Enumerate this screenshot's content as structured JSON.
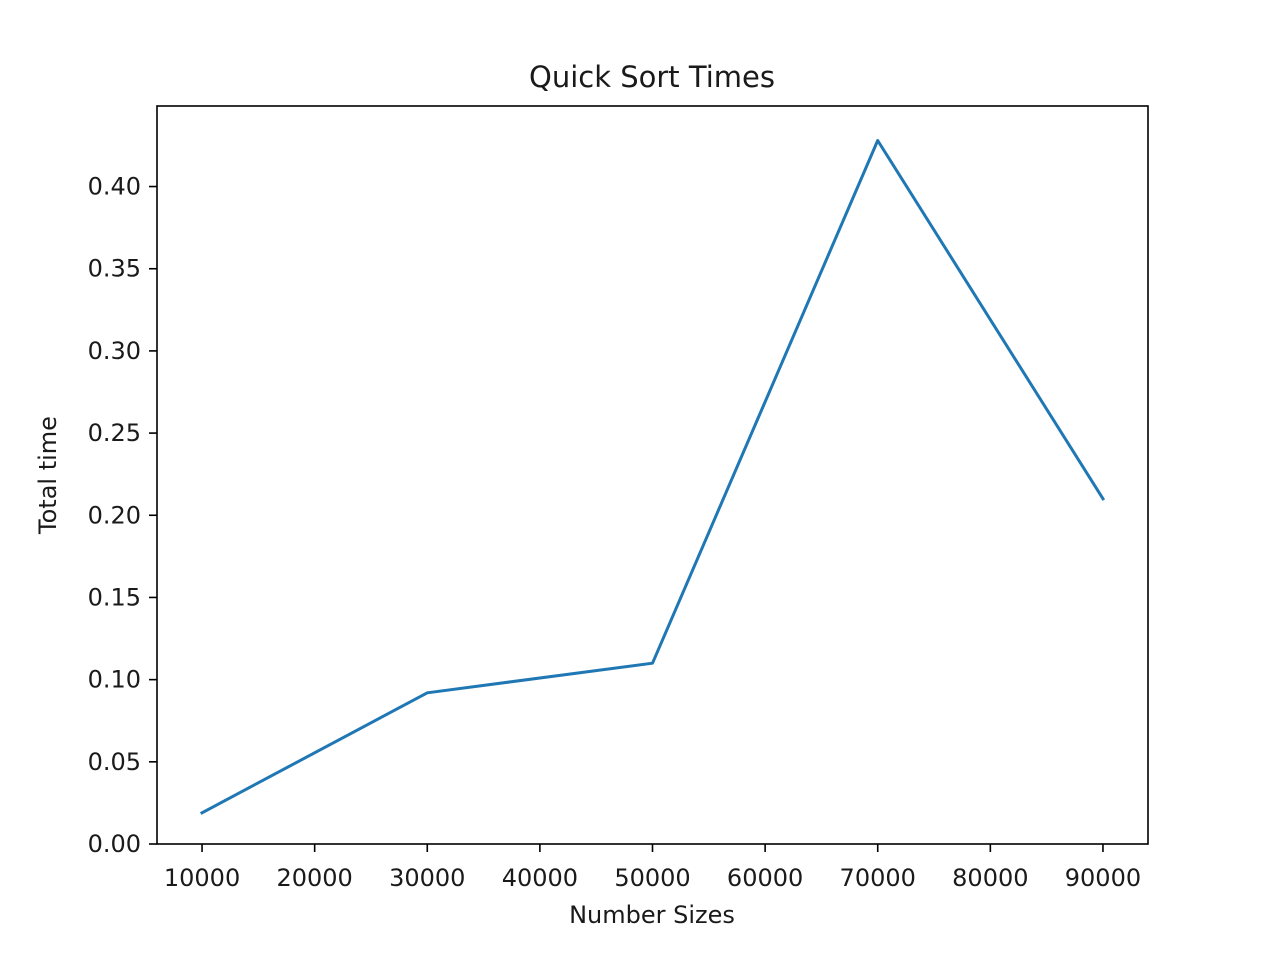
{
  "chart_data": {
    "type": "line",
    "title": "Quick Sort Times",
    "xlabel": "Number Sizes",
    "ylabel": "Total time",
    "x": [
      10000,
      30000,
      50000,
      70000,
      90000
    ],
    "series": [
      {
        "values": [
          0.019,
          0.092,
          0.11,
          0.428,
          0.21
        ],
        "color": "#1f77b4"
      }
    ],
    "xlim": [
      6000,
      94000
    ],
    "ylim": [
      0.0,
      0.449
    ],
    "xticks": [
      10000,
      20000,
      30000,
      40000,
      50000,
      60000,
      70000,
      80000,
      90000
    ],
    "xtick_labels": [
      "10000",
      "20000",
      "30000",
      "40000",
      "50000",
      "60000",
      "70000",
      "80000",
      "90000"
    ],
    "yticks": [
      0.0,
      0.05,
      0.1,
      0.15,
      0.2,
      0.25,
      0.3,
      0.35,
      0.4
    ],
    "ytick_labels": [
      "0.00",
      "0.05",
      "0.10",
      "0.15",
      "0.20",
      "0.25",
      "0.30",
      "0.35",
      "0.40"
    ],
    "grid": false,
    "legend": false
  }
}
